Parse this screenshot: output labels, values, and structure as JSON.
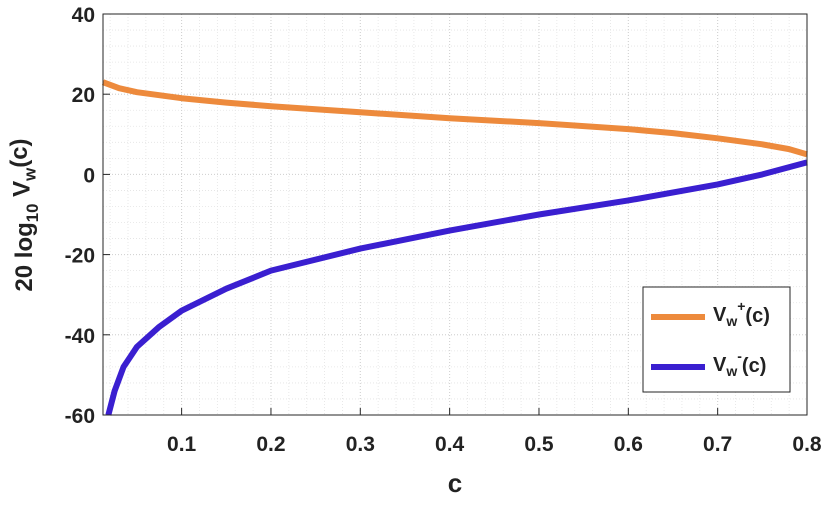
{
  "chart_data": {
    "type": "line",
    "xlabel": "c",
    "ylabel": "20 log_{10} V_w(c)",
    "xlim": [
      0.012,
      0.8
    ],
    "ylim": [
      -60,
      40
    ],
    "xticks": [
      0.1,
      0.2,
      0.3,
      0.4,
      0.5,
      0.6,
      0.7,
      0.8
    ],
    "yticks": [
      -60,
      -40,
      -20,
      0,
      20,
      40
    ],
    "grid": true,
    "minor_grid": true,
    "legend": "southeast",
    "series": [
      {
        "name": "V_w^+(c)",
        "color": "#ed8a3c",
        "x": [
          0.012,
          0.03,
          0.05,
          0.1,
          0.15,
          0.2,
          0.3,
          0.4,
          0.5,
          0.6,
          0.65,
          0.7,
          0.75,
          0.78,
          0.8
        ],
        "values": [
          23,
          21.5,
          20.5,
          19,
          17.9,
          17,
          15.5,
          14,
          12.8,
          11.3,
          10.3,
          9,
          7.5,
          6.3,
          5
        ]
      },
      {
        "name": "V_w^-(c)",
        "color": "#3a1fd0",
        "x": [
          0.018,
          0.025,
          0.035,
          0.05,
          0.075,
          0.1,
          0.15,
          0.2,
          0.3,
          0.4,
          0.5,
          0.6,
          0.7,
          0.75,
          0.8
        ],
        "values": [
          -60,
          -54,
          -48,
          -43,
          -38,
          -34,
          -28.5,
          -24,
          -18.5,
          -14,
          -10,
          -6.5,
          -2.5,
          0,
          3
        ]
      }
    ]
  }
}
